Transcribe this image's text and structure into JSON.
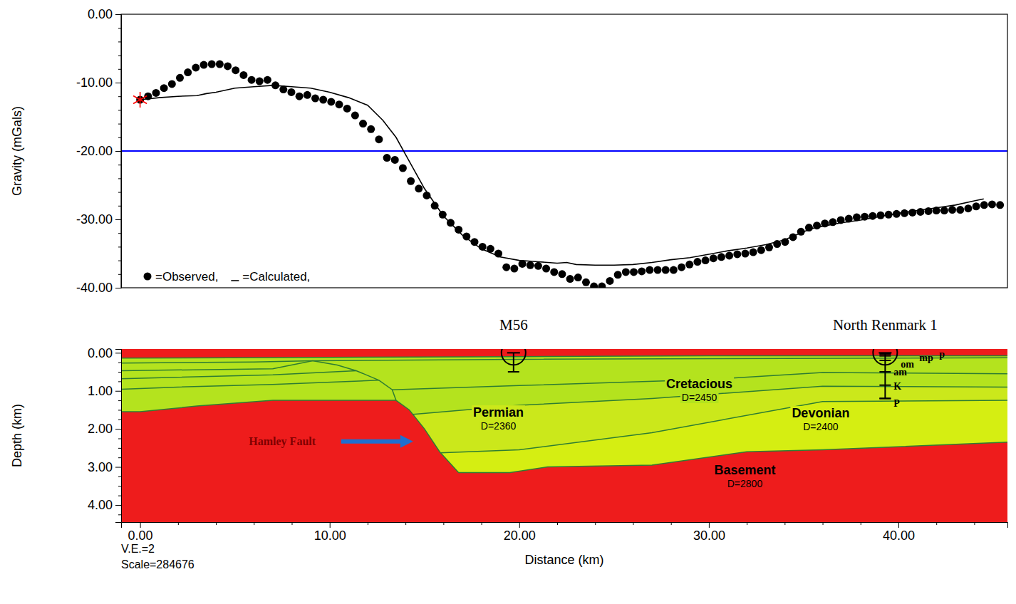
{
  "chart_data": [
    {
      "type": "line",
      "ylabel": "Gravity (mGals)",
      "xlim": [
        -1,
        45.75
      ],
      "ylim": [
        -40,
        0
      ],
      "yticks": [
        {
          "value": 0,
          "label": "0.00"
        },
        {
          "value": -10,
          "label": "-10.00"
        },
        {
          "value": -20,
          "label": "-20.00"
        },
        {
          "value": -30,
          "label": "-30.00"
        },
        {
          "value": -40,
          "label": "-40.00"
        }
      ],
      "yticks_minor": [
        -38,
        -36,
        -34,
        -32,
        -28,
        -26,
        -24,
        -22,
        -18,
        -16,
        -14,
        -12,
        -8,
        -6,
        -4,
        -2
      ],
      "tick_labels": "y",
      "grid": false,
      "legend": "lower left",
      "hline": {
        "value": -20,
        "color": "#0000ff"
      },
      "highlight": {
        "x": 0,
        "y": -12.5,
        "color": "#ff0000",
        "marker": "asterisk"
      },
      "series": [
        {
          "name": "=Observed,",
          "type": "scatter",
          "marker": "circle",
          "color": "#000000",
          "x": [
            0,
            0.42,
            0.84,
            1.26,
            1.68,
            2.1,
            2.52,
            2.94,
            3.36,
            3.78,
            4.2,
            4.62,
            5.04,
            5.46,
            5.88,
            6.3,
            6.72,
            7.14,
            7.56,
            7.98,
            8.4,
            8.82,
            9.24,
            9.66,
            10.08,
            10.5,
            10.92,
            11.34,
            11.76,
            12.18,
            12.6,
            13.02,
            13.44,
            13.86,
            14.28,
            14.7,
            15.12,
            15.54,
            15.96,
            16.38,
            16.8,
            17.22,
            17.64,
            18.06,
            18.48,
            18.9,
            19.32,
            19.74,
            20.16,
            20.58,
            21.0,
            21.42,
            21.84,
            22.26,
            22.68,
            23.1,
            23.52,
            23.94,
            24.36,
            24.78,
            25.2,
            25.62,
            26.04,
            26.46,
            26.88,
            27.3,
            27.72,
            28.14,
            28.56,
            28.98,
            29.4,
            29.82,
            30.24,
            30.66,
            31.08,
            31.5,
            31.92,
            32.34,
            32.76,
            33.18,
            33.6,
            34.02,
            34.44,
            34.86,
            35.28,
            35.7,
            36.12,
            36.54,
            36.96,
            37.38,
            37.8,
            38.22,
            38.64,
            39.06,
            39.48,
            39.9,
            40.32,
            40.74,
            41.16,
            41.58,
            42.0,
            42.42,
            42.84,
            43.26,
            43.68,
            44.1,
            44.52,
            44.94,
            45.36
          ],
          "values": [
            -12.5,
            -12.0,
            -11.5,
            -10.8,
            -10.2,
            -9.3,
            -8.5,
            -7.8,
            -7.4,
            -7.3,
            -7.3,
            -7.6,
            -8.2,
            -8.9,
            -9.6,
            -9.8,
            -9.6,
            -10.4,
            -11.0,
            -11.4,
            -12.0,
            -11.8,
            -12.3,
            -12.5,
            -12.8,
            -13.2,
            -13.8,
            -14.8,
            -16.0,
            -16.8,
            -18.3,
            -21.0,
            -21.3,
            -22.5,
            -24.4,
            -25.5,
            -26.5,
            -28.0,
            -29.3,
            -30.5,
            -31.5,
            -32.5,
            -33.3,
            -34.0,
            -34.3,
            -35.0,
            -37.0,
            -37.2,
            -36.5,
            -36.7,
            -36.8,
            -37.2,
            -37.7,
            -38.0,
            -38.7,
            -38.5,
            -39.2,
            -39.8,
            -39.8,
            -39.0,
            -38.1,
            -37.7,
            -37.7,
            -37.6,
            -37.4,
            -37.4,
            -37.4,
            -37.4,
            -37.0,
            -36.6,
            -36.2,
            -36.0,
            -35.7,
            -35.5,
            -35.3,
            -35.1,
            -35.0,
            -34.8,
            -34.5,
            -34.1,
            -33.6,
            -33.3,
            -32.6,
            -31.8,
            -31.2,
            -30.9,
            -30.6,
            -30.4,
            -30.1,
            -29.9,
            -29.7,
            -29.6,
            -29.5,
            -29.4,
            -29.3,
            -29.2,
            -29.1,
            -29.0,
            -28.9,
            -28.8,
            -28.7,
            -28.7,
            -28.6,
            -28.6,
            -28.4,
            -28.1,
            -27.9,
            -27.8,
            -27.9
          ]
        },
        {
          "name": "=Calculated,",
          "type": "line",
          "line_style": "solid",
          "color": "#000000",
          "x": [
            0,
            1,
            2,
            3,
            3.5,
            4,
            5,
            6,
            7,
            8,
            9,
            10,
            11,
            12,
            12.8,
            13.5,
            14,
            14.5,
            15,
            15.5,
            16,
            17,
            18,
            19,
            20,
            21,
            22,
            22.5,
            23,
            24,
            25,
            26,
            27,
            28,
            29,
            30,
            31,
            32,
            33,
            34,
            34.5,
            35,
            35.5,
            36,
            37,
            38,
            39,
            40,
            41,
            42,
            43,
            44,
            44.5
          ],
          "values": [
            -12.5,
            -12.2,
            -12.0,
            -11.9,
            -11.6,
            -11.4,
            -10.8,
            -10.6,
            -10.4,
            -10.6,
            -10.8,
            -11.4,
            -12.2,
            -13.3,
            -15.5,
            -18.0,
            -20.5,
            -23.0,
            -25.5,
            -27.5,
            -29.5,
            -32.3,
            -34.3,
            -35.5,
            -36.0,
            -36.2,
            -36.4,
            -36.3,
            -36.6,
            -36.7,
            -36.7,
            -36.6,
            -36.3,
            -35.9,
            -35.6,
            -35.1,
            -34.6,
            -34.2,
            -33.7,
            -33.0,
            -32.4,
            -31.8,
            -31.3,
            -31.0,
            -30.5,
            -30.1,
            -29.6,
            -29.1,
            -28.7,
            -28.3,
            -27.9,
            -27.3,
            -27.0
          ]
        }
      ]
    },
    {
      "type": "cross_section",
      "xlabel": "Distance (km)",
      "ylabel": "Depth (km)",
      "xlim": [
        -1,
        45.75
      ],
      "ylim": [
        -0.1,
        4.45
      ],
      "xticks": [
        {
          "value": 0,
          "label": "0.00"
        },
        {
          "value": 10,
          "label": "10.00"
        },
        {
          "value": 20,
          "label": "20.00"
        },
        {
          "value": 30,
          "label": "30.00"
        },
        {
          "value": 40,
          "label": "40.00"
        }
      ],
      "xticks_minor": [
        2,
        4,
        6,
        8,
        12,
        14,
        16,
        18,
        22,
        24,
        26,
        28,
        32,
        34,
        36,
        38,
        42,
        44
      ],
      "yticks": [
        {
          "value": 0,
          "label": "0.00"
        },
        {
          "value": 1,
          "label": "1.00"
        },
        {
          "value": 2,
          "label": "2.00"
        },
        {
          "value": 3,
          "label": "3.00"
        },
        {
          "value": 4,
          "label": "4.00"
        }
      ],
      "yticks_minor": [
        0.25,
        0.5,
        0.75,
        1.25,
        1.5,
        1.75,
        2.25,
        2.5,
        2.75,
        3.25,
        3.5,
        3.75,
        4.25
      ],
      "units": [
        {
          "color": "#ee1c1c",
          "polygon": [
            [
              -1,
              -0.1
            ],
            [
              45.75,
              -0.1
            ],
            [
              45.75,
              0.08
            ],
            [
              30,
              0.08
            ],
            [
              20,
              0.1
            ],
            [
              10,
              0.12
            ],
            [
              -1,
              0.14
            ]
          ]
        },
        {
          "name": "Cretacious",
          "density": "D=2450",
          "color": "#b4e31e",
          "polygon": [
            [
              -1,
              0.14
            ],
            [
              10,
              0.12
            ],
            [
              20,
              0.1
            ],
            [
              30,
              0.08
            ],
            [
              45.75,
              0.08
            ],
            [
              45.75,
              2.35
            ],
            [
              36,
              2.55
            ],
            [
              32,
              2.6
            ],
            [
              27,
              2.95
            ],
            [
              21.5,
              3.0
            ],
            [
              19.5,
              3.15
            ],
            [
              16.8,
              3.15
            ],
            [
              15.8,
              2.6
            ],
            [
              15,
              2.0
            ],
            [
              14.2,
              1.5
            ],
            [
              13.5,
              1.25
            ],
            [
              7,
              1.25
            ],
            [
              3,
              1.4
            ],
            [
              0,
              1.55
            ],
            [
              -1,
              1.55
            ]
          ]
        },
        {
          "name": "Permian",
          "density": "D=2360",
          "color": "#cbe81b",
          "polygon": [
            [
              14.4,
              1.62
            ],
            [
              20,
              1.38
            ],
            [
              27,
              1.2
            ],
            [
              36,
              0.88
            ],
            [
              45.75,
              0.9
            ],
            [
              45.75,
              1.25
            ],
            [
              36,
              1.28
            ],
            [
              27,
              2.1
            ],
            [
              20,
              2.55
            ],
            [
              15.85,
              2.63
            ],
            [
              15,
              2.0
            ]
          ]
        },
        {
          "name": "Devonian",
          "density": "D=2400",
          "color": "#d5ee12",
          "polygon": [
            [
              15.85,
              2.63
            ],
            [
              20,
              2.55
            ],
            [
              27,
              2.1
            ],
            [
              36,
              1.28
            ],
            [
              45.75,
              1.25
            ],
            [
              45.75,
              2.35
            ],
            [
              36,
              2.55
            ],
            [
              32,
              2.6
            ],
            [
              27,
              2.95
            ],
            [
              21.5,
              3.0
            ],
            [
              19.5,
              3.15
            ],
            [
              16.8,
              3.15
            ]
          ]
        },
        {
          "name": "Basement",
          "density": "D=2800",
          "color": "#ee1c1c",
          "polygon": [
            [
              -1,
              1.55
            ],
            [
              0,
              1.55
            ],
            [
              3,
              1.4
            ],
            [
              7,
              1.25
            ],
            [
              13.5,
              1.25
            ],
            [
              14.2,
              1.5
            ],
            [
              15,
              2.0
            ],
            [
              15.8,
              2.6
            ],
            [
              16.8,
              3.15
            ],
            [
              19.5,
              3.15
            ],
            [
              21.5,
              3.0
            ],
            [
              27,
              2.95
            ],
            [
              32,
              2.6
            ],
            [
              36,
              2.55
            ],
            [
              45.75,
              2.35
            ],
            [
              45.75,
              4.45
            ],
            [
              -1,
              4.45
            ]
          ]
        }
      ],
      "boundaries": [
        [
          [
            -1,
            0.14
          ],
          [
            10,
            0.12
          ],
          [
            20,
            0.1
          ],
          [
            30,
            0.08
          ],
          [
            45.75,
            0.08
          ]
        ],
        [
          [
            -1,
            0.27
          ],
          [
            6,
            0.24
          ],
          [
            9.1,
            0.21
          ]
        ],
        [
          [
            -1,
            0.47
          ],
          [
            7,
            0.42
          ],
          [
            9.1,
            0.21
          ]
        ],
        [
          [
            -1,
            0.68
          ],
          [
            7,
            0.58
          ],
          [
            11.4,
            0.47
          ]
        ],
        [
          [
            -1,
            0.96
          ],
          [
            2,
            0.9
          ],
          [
            7,
            0.83
          ],
          [
            12.6,
            0.72
          ]
        ],
        [
          [
            9.1,
            0.21
          ],
          [
            10.4,
            0.32
          ],
          [
            11.4,
            0.47
          ],
          [
            12.6,
            0.72
          ],
          [
            13.3,
            0.97
          ],
          [
            13.5,
            1.25
          ]
        ],
        [
          [
            9.1,
            0.21
          ],
          [
            20,
            0.17
          ],
          [
            45.75,
            0.13
          ]
        ],
        [
          [
            13.3,
            0.97
          ],
          [
            20,
            0.86
          ],
          [
            30,
            0.7
          ],
          [
            36,
            0.52
          ],
          [
            45.75,
            0.55
          ]
        ],
        [
          [
            14.4,
            1.62
          ],
          [
            20,
            1.38
          ],
          [
            27,
            1.2
          ],
          [
            36,
            0.88
          ],
          [
            45.75,
            0.9
          ]
        ],
        [
          [
            15.85,
            2.63
          ],
          [
            20,
            2.55
          ],
          [
            27,
            2.1
          ],
          [
            36,
            1.28
          ],
          [
            45.75,
            1.25
          ]
        ],
        [
          [
            -1,
            1.55
          ],
          [
            0,
            1.55
          ],
          [
            3,
            1.4
          ],
          [
            7,
            1.25
          ],
          [
            13.5,
            1.25
          ],
          [
            14.2,
            1.5
          ],
          [
            15,
            2.0
          ],
          [
            15.8,
            2.6
          ],
          [
            16.8,
            3.15
          ],
          [
            19.5,
            3.15
          ],
          [
            21.5,
            3.0
          ],
          [
            27,
            2.95
          ],
          [
            32,
            2.6
          ],
          [
            36,
            2.55
          ],
          [
            45.75,
            2.35
          ]
        ]
      ],
      "wells": [
        {
          "name": "M56",
          "x": 19.7,
          "depth": 0.5
        },
        {
          "name": "North Renmark 1",
          "x": 39.3,
          "depth": 1.2,
          "tops": [
            {
              "label": "p",
              "depth": 0.03
            },
            {
              "label": "mp",
              "depth": 0.08
            },
            {
              "label": "om",
              "depth": 0.2
            },
            {
              "label": "am",
              "depth": 0.5
            },
            {
              "label": "K",
              "depth": 0.85
            },
            {
              "label": "P",
              "depth": 1.2
            }
          ]
        }
      ],
      "annotations": [
        {
          "text": "Hamley Fault",
          "color": "#800000"
        },
        {
          "text": "V.E.=2"
        },
        {
          "text": "Scale=284676"
        }
      ]
    }
  ]
}
